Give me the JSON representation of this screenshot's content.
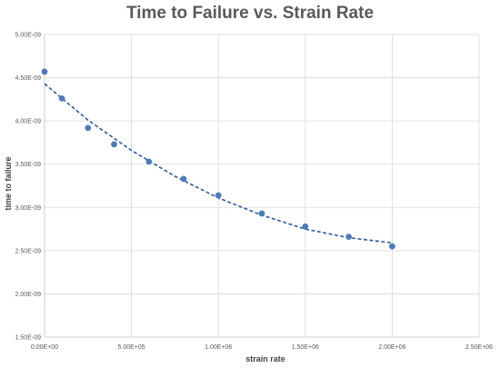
{
  "chart_data": {
    "type": "scatter",
    "title": "Time to Failure vs. Strain Rate",
    "xlabel": "strain rate",
    "ylabel": "time to failure",
    "xlim": [
      0,
      2500000
    ],
    "ylim": [
      1.5e-09,
      5e-09
    ],
    "x_ticks": [
      0,
      500000,
      1000000,
      1500000,
      2000000,
      2500000
    ],
    "x_tick_labels": [
      "0.00E+00",
      "5.00E+05",
      "1.00E+06",
      "1.50E+06",
      "2.00E+06",
      "2.50E+06"
    ],
    "y_ticks": [
      1.5e-09,
      2e-09,
      2.5e-09,
      3e-09,
      3.5e-09,
      4e-09,
      4.5e-09,
      5e-09
    ],
    "y_tick_labels": [
      "1.50E-09",
      "2.00E-09",
      "2.50E-09",
      "3.00E-09",
      "3.50E-09",
      "4.00E-09",
      "4.50E-09",
      "5.00E-09"
    ],
    "grid": true,
    "series": [
      {
        "x": [
          0,
          100000,
          250000,
          400000,
          600000,
          800000,
          1000000,
          1250000,
          1500000,
          1750000,
          2000000
        ],
        "y": [
          4.57e-09,
          4.26e-09,
          3.92e-09,
          3.73e-09,
          3.53e-09,
          3.33e-09,
          3.14e-09,
          2.93e-09,
          2.78e-09,
          2.66e-09,
          2.55e-09
        ]
      }
    ],
    "trendline": {
      "type": "polynomial",
      "style": "dashed",
      "x_range": [
        0,
        2000000
      ],
      "coefficients_note": "",
      "x": [
        0,
        250000,
        500000,
        750000,
        1000000,
        1250000,
        1500000,
        1750000,
        2000000
      ],
      "y": [
        4.43e-09,
        4.01e-09,
        3.66e-09,
        3.36e-09,
        3.11e-09,
        2.91e-09,
        2.75e-09,
        2.65e-09,
        2.59e-09
      ]
    },
    "colors": {
      "marker": "#4f7ab8",
      "trendline": "#2e5a9c",
      "grid": "#d9d9d9",
      "axis": "#bfbfbf"
    }
  }
}
